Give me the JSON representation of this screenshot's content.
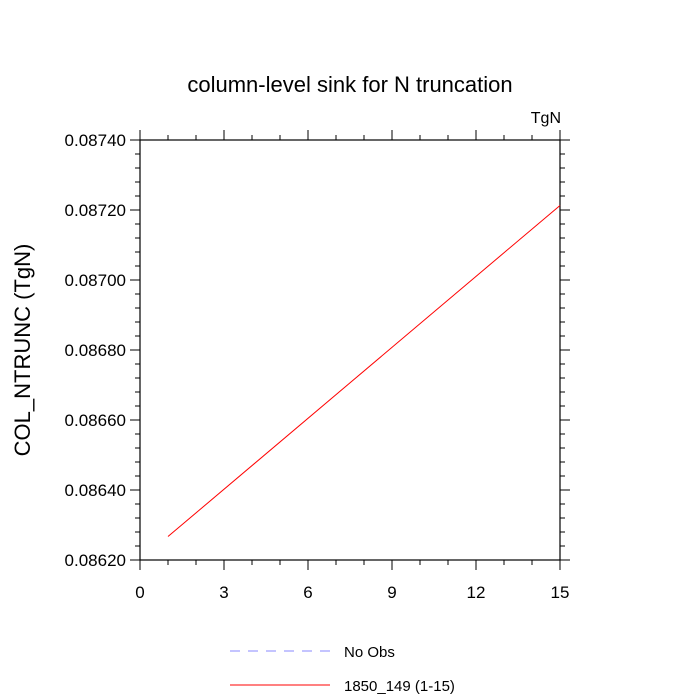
{
  "chart_data": {
    "type": "line",
    "title": "column-level sink for N truncation",
    "units_label": "TgN",
    "ylabel": "COL_NTRUNC  (TgN)",
    "xlabel": "",
    "xlim": [
      0,
      15
    ],
    "ylim": [
      0.0862,
      0.0874
    ],
    "x_ticks": [
      "0",
      "3",
      "6",
      "9",
      "12",
      "15"
    ],
    "y_ticks": [
      "0.08620",
      "0.08640",
      "0.08660",
      "0.08680",
      "0.08700",
      "0.08720",
      "0.08740"
    ],
    "grid": false,
    "legend_position": "bottom",
    "series": [
      {
        "name": "No Obs",
        "color": "#8888ff",
        "style": "dashed",
        "x": [],
        "y": []
      },
      {
        "name": "1850_149 (1-15)",
        "color": "#ff0000",
        "style": "solid",
        "x": [
          1,
          15
        ],
        "y": [
          0.086267,
          0.087213
        ]
      }
    ]
  }
}
